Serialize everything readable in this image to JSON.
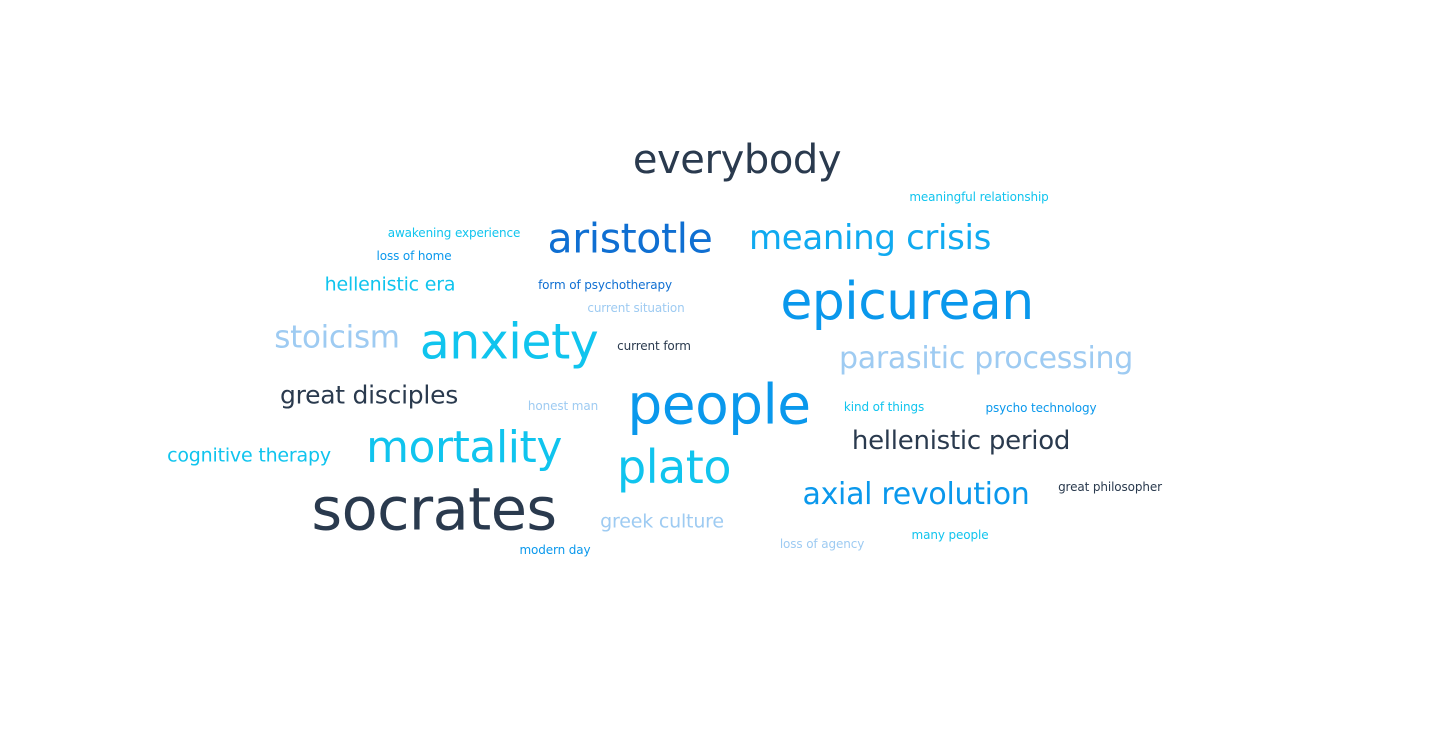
{
  "word_cloud": {
    "words": [
      {
        "text": "everybody",
        "color": "#2a3a4e"
      },
      {
        "text": "meaningful relationship",
        "color": "#10c4ee"
      },
      {
        "text": "awakening experience",
        "color": "#10c4ee"
      },
      {
        "text": "aristotle",
        "color": "#0f6fd2"
      },
      {
        "text": "meaning crisis",
        "color": "#10aaf0"
      },
      {
        "text": "loss of home",
        "color": "#0a98ec"
      },
      {
        "text": "hellenistic era",
        "color": "#10c4ee"
      },
      {
        "text": "form of psychotherapy",
        "color": "#0f6fd2"
      },
      {
        "text": "current situation",
        "color": "#9ecbf2"
      },
      {
        "text": "epicurean",
        "color": "#0a98ec"
      },
      {
        "text": "stoicism",
        "color": "#9ecbf2"
      },
      {
        "text": "anxiety",
        "color": "#10c4ee"
      },
      {
        "text": "current form",
        "color": "#2a3a4e"
      },
      {
        "text": "parasitic processing",
        "color": "#9ecbf2"
      },
      {
        "text": "great disciples",
        "color": "#2a3a4e"
      },
      {
        "text": "honest man",
        "color": "#9ecbf2"
      },
      {
        "text": "people",
        "color": "#0a98ec"
      },
      {
        "text": "kind of things",
        "color": "#10c4ee"
      },
      {
        "text": "psycho technology",
        "color": "#0a98ec"
      },
      {
        "text": "cognitive therapy",
        "color": "#10c4ee"
      },
      {
        "text": "mortality",
        "color": "#10c4ee"
      },
      {
        "text": "hellenistic period",
        "color": "#2a3a4e"
      },
      {
        "text": "plato",
        "color": "#10c4ee"
      },
      {
        "text": "socrates",
        "color": "#2a3a4e"
      },
      {
        "text": "axial revolution",
        "color": "#0a98ec"
      },
      {
        "text": "great philosopher",
        "color": "#2a3a4e"
      },
      {
        "text": "greek culture",
        "color": "#9ecbf2"
      },
      {
        "text": "modern day",
        "color": "#0a98ec"
      },
      {
        "text": "loss of agency",
        "color": "#9ecbf2"
      },
      {
        "text": "many people",
        "color": "#10c4ee"
      }
    ]
  }
}
